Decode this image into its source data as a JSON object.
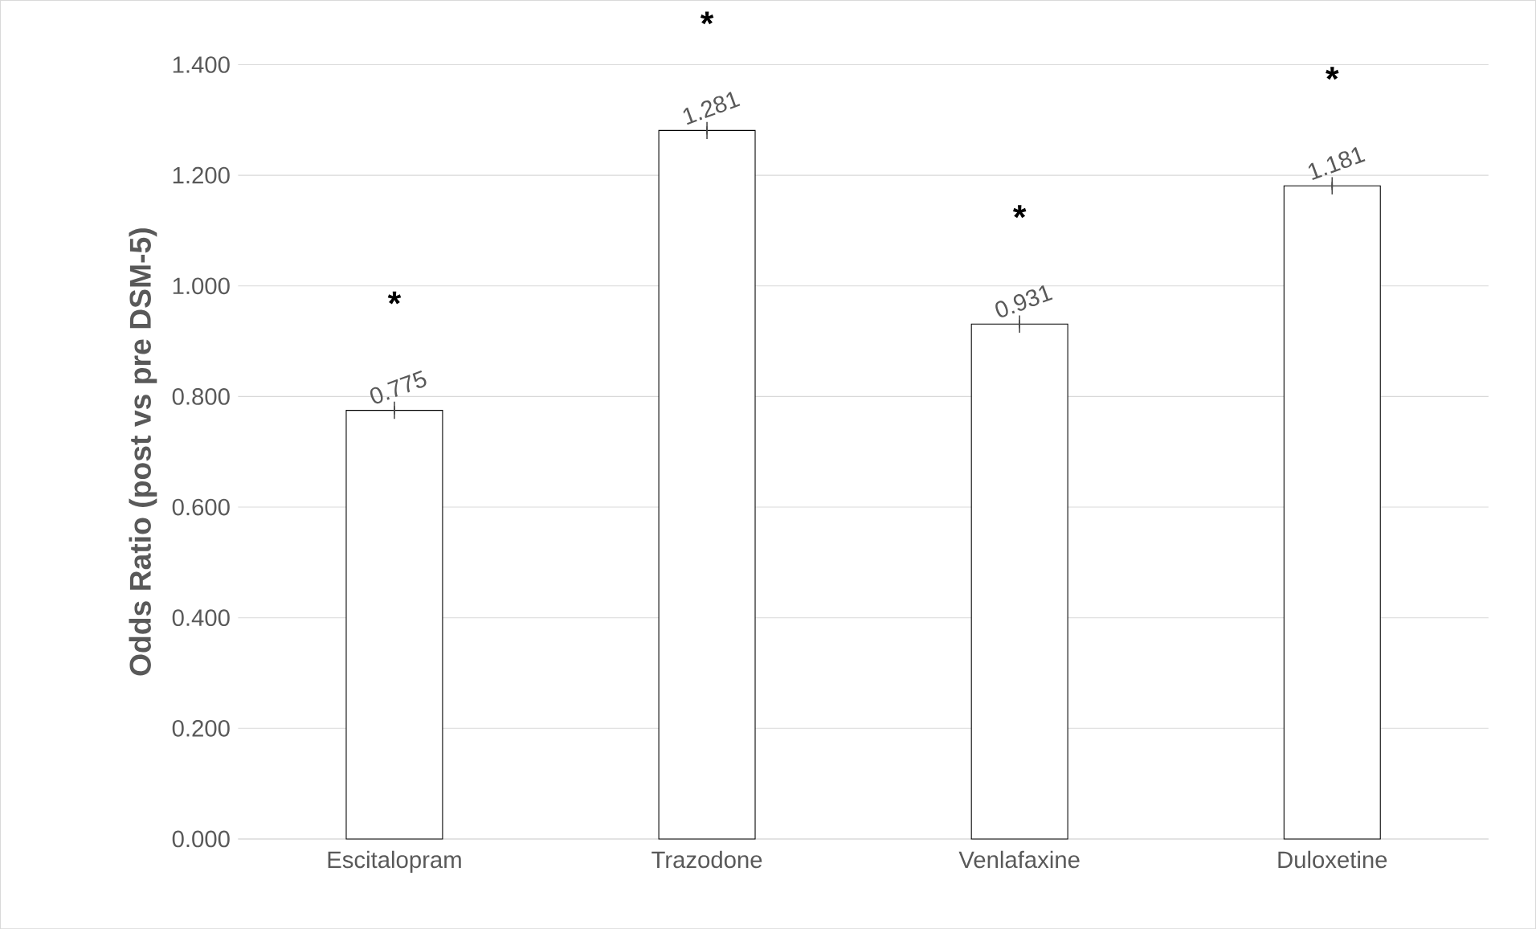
{
  "chart_data": {
    "type": "bar",
    "ylabel": "Odds Ratio (post vs pre DSM-5)",
    "categories": [
      "Escitalopram",
      "Trazodone",
      "Venlafaxine",
      "Duloxetine"
    ],
    "values": [
      0.775,
      1.281,
      0.931,
      1.181
    ],
    "errors": [
      0.004,
      0.004,
      0.004,
      0.004
    ],
    "color": "#ffffff",
    "ylim": [
      0,
      1.4
    ],
    "yticks": [
      {
        "value": 0,
        "label": "0.000"
      },
      {
        "value": 0.2,
        "label": "0.200"
      },
      {
        "value": 0.4,
        "label": "0.400"
      },
      {
        "value": 0.6,
        "label": "0.600"
      },
      {
        "value": 0.8,
        "label": "0.800"
      },
      {
        "value": 1.0,
        "label": "1.000"
      },
      {
        "value": 1.2,
        "label": "1.200"
      },
      {
        "value": 1.4,
        "label": "1.400"
      }
    ],
    "grid": "y",
    "data_labels": true,
    "annotations": [
      "*",
      "*",
      "*",
      "*"
    ]
  }
}
